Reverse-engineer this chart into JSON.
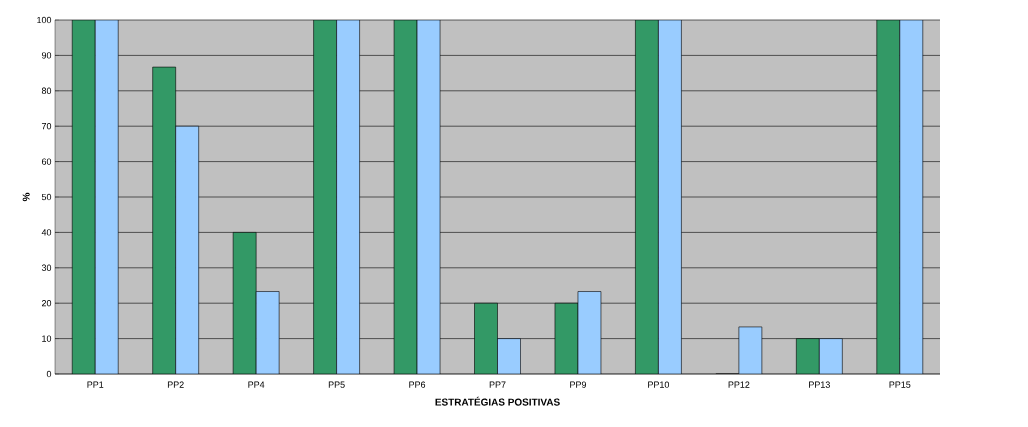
{
  "chart_data": {
    "type": "bar",
    "xlabel": "ESTRATÉGIAS POSITIVAS",
    "ylabel": "%",
    "categories": [
      "PP1",
      "PP2",
      "PP4",
      "PP5",
      "PP6",
      "PP7",
      "PP9",
      "PP10",
      "PP12",
      "PP13",
      "PP15"
    ],
    "series": [
      {
        "color": "#339966",
        "values": [
          100,
          86.7,
          40,
          100,
          100,
          20,
          20,
          100,
          0,
          10,
          100
        ]
      },
      {
        "color": "#99ccff",
        "values": [
          100,
          70,
          23.3,
          100,
          100,
          10,
          23.3,
          100,
          13.3,
          10,
          100
        ]
      }
    ],
    "ylim": [
      0,
      100
    ],
    "yticks": [
      0,
      10,
      20,
      30,
      40,
      50,
      60,
      70,
      80,
      90,
      100
    ],
    "grid": "y"
  }
}
